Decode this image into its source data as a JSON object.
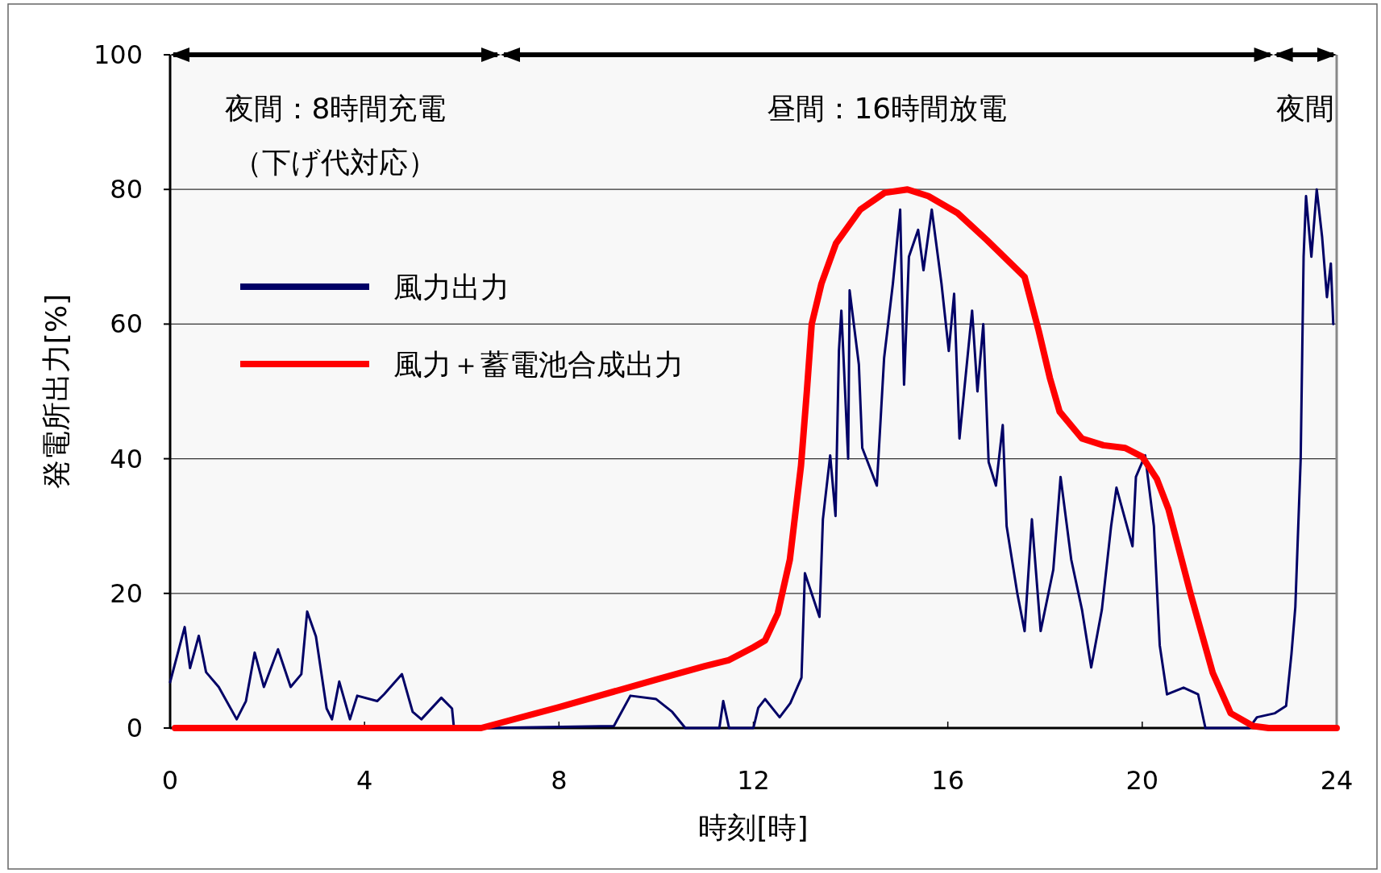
{
  "chart_data": {
    "type": "line",
    "xlabel": "時刻[時]",
    "ylabel": "発電所出力[%]",
    "xlim": [
      0,
      24
    ],
    "xticks": [
      0,
      4,
      8,
      12,
      16,
      20,
      24
    ],
    "ylim": [
      0,
      100
    ],
    "yticks": [
      0,
      20,
      40,
      60,
      80,
      100
    ],
    "grid": "y",
    "legend": "top left",
    "line_style": "solid",
    "marker": "none",
    "bands": [
      {
        "axis": "x",
        "from": 0,
        "to": 6.8,
        "label": "夜間：8時間充電",
        "color": "#f2f2f2"
      },
      {
        "axis": "x",
        "from": 6.8,
        "to": 22.7,
        "label": "昼間：16時間放電",
        "color": "#f2f2f2"
      },
      {
        "axis": "x",
        "from": 22.7,
        "to": 24,
        "label": "夜間",
        "color": "#f2f2f2"
      }
    ],
    "annotations": [
      "（下げ代対応）"
    ],
    "series": [
      {
        "name": "風力出力",
        "color": "#000066",
        "x": [
          0,
          0.3,
          0.41,
          0.59,
          0.74,
          1.0,
          1.37,
          1.56,
          1.74,
          1.93,
          2.22,
          2.48,
          2.7,
          2.82,
          3.0,
          3.22,
          3.33,
          3.48,
          3.7,
          3.85,
          4.26,
          4.4,
          4.77,
          4.99,
          5.17,
          5.58,
          5.8,
          5.84,
          6.47,
          9.13,
          9.47,
          10.0,
          10.33,
          10.6,
          11.3,
          11.38,
          11.5,
          12.0,
          12.1,
          12.24,
          12.54,
          12.76,
          12.99,
          13.06,
          13.36,
          13.43,
          13.58,
          13.69,
          13.76,
          13.81,
          13.95,
          13.98,
          14.17,
          14.24,
          14.54,
          14.69,
          14.87,
          15.02,
          15.1,
          15.2,
          15.39,
          15.5,
          15.67,
          15.87,
          16.02,
          16.13,
          16.24,
          16.5,
          16.61,
          16.73,
          16.84,
          16.99,
          17.13,
          17.21,
          17.43,
          17.58,
          17.73,
          17.91,
          18.17,
          18.32,
          18.54,
          18.76,
          18.95,
          19.17,
          19.36,
          19.47,
          19.8,
          19.87,
          20.06,
          20.24,
          20.36,
          20.51,
          20.85,
          21.15,
          21.3,
          22.2,
          22.36,
          22.73,
          22.96,
          23.07,
          23.15,
          23.26,
          23.32,
          23.37,
          23.48,
          23.59,
          23.7,
          23.8,
          23.88,
          23.93
        ],
        "values": [
          6.8,
          15,
          8.9,
          13.7,
          8.3,
          6.1,
          1.3,
          4,
          11.2,
          6.1,
          11.7,
          6.1,
          8,
          17.3,
          13.6,
          2.9,
          1.3,
          6.9,
          1.3,
          4.8,
          4,
          5,
          8,
          2.4,
          1.3,
          4.5,
          2.9,
          0,
          0,
          0.3,
          4.8,
          4.3,
          2.4,
          0,
          0,
          4,
          0,
          0,
          3,
          4.3,
          1.6,
          3.7,
          7.5,
          23,
          16.5,
          31,
          40.5,
          31.5,
          56,
          62,
          40,
          65,
          54,
          41.6,
          36,
          55,
          66,
          77,
          51,
          70,
          74,
          68,
          77,
          66,
          56,
          64.5,
          43,
          62,
          50,
          60,
          39.5,
          36,
          45,
          30,
          20,
          14.4,
          31,
          14.4,
          23.5,
          37.3,
          25,
          17.6,
          9,
          17.6,
          30,
          35.7,
          27,
          37.3,
          40.5,
          30,
          12.3,
          5,
          6,
          5,
          0,
          0,
          1.6,
          2.2,
          3.3,
          11,
          18,
          40,
          70,
          79,
          70,
          80,
          73,
          64,
          69,
          60
        ]
      },
      {
        "name": "風力＋蓄電池合成出力",
        "color": "#ff0000",
        "x": [
          0.1,
          6.4,
          8,
          10,
          11,
          11.5,
          12,
          12.24,
          12.5,
          12.75,
          12.98,
          13.1,
          13.2,
          13.4,
          13.7,
          14.2,
          14.7,
          15.17,
          15.6,
          16.2,
          16.8,
          17.58,
          17.87,
          18.1,
          18.3,
          18.76,
          19.2,
          19.65,
          20.0,
          20.3,
          20.54,
          21.0,
          21.45,
          21.82,
          22.28,
          22.6,
          24
        ],
        "values": [
          0,
          0,
          3.1,
          7.2,
          9.2,
          10.1,
          12,
          13,
          17,
          25,
          39,
          50,
          60,
          66,
          72,
          77,
          79.5,
          80,
          79,
          76.5,
          72.5,
          67,
          59,
          52,
          47,
          43,
          42,
          41.6,
          40.3,
          37,
          32.5,
          19.8,
          8.2,
          2.2,
          0.3,
          0,
          0
        ]
      }
    ]
  }
}
